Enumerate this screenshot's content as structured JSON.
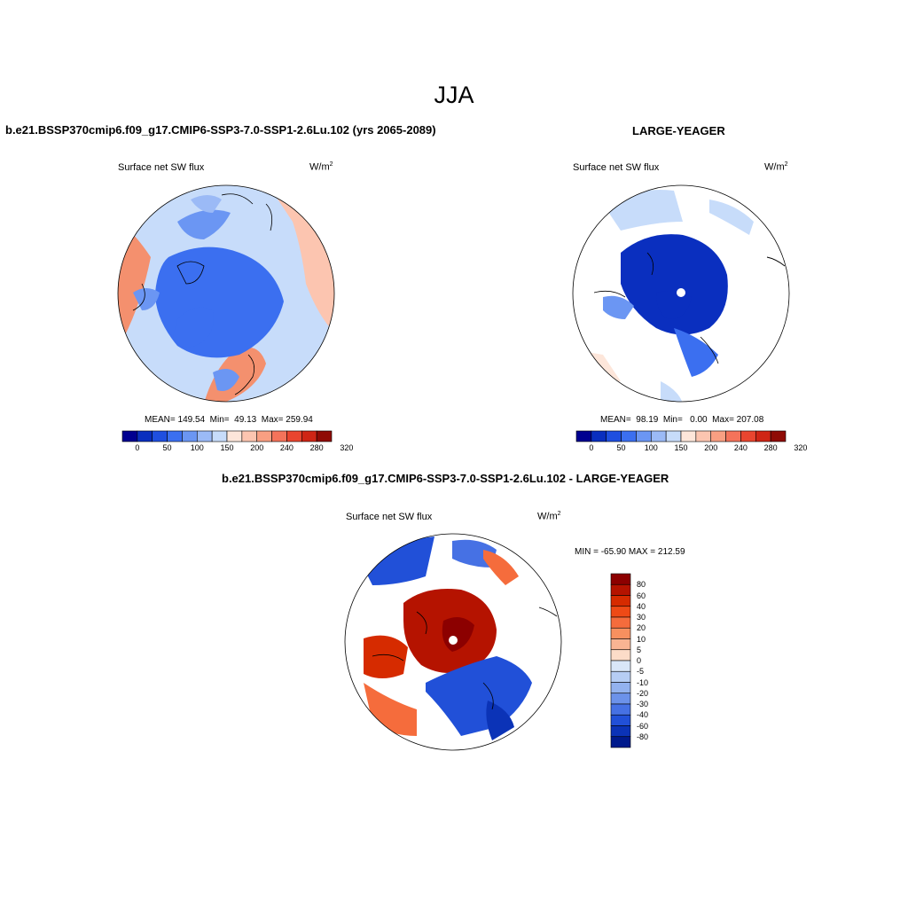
{
  "title": "JJA",
  "panels": {
    "left": {
      "title": "b.e21.BSSP370cmip6.f09_g17.CMIP6-SSP3-7.0-SSP1-2.6Lu.102 (yrs 2065-2089)",
      "field": "Surface net SW flux",
      "units_base": "W/m",
      "units_exp": "2",
      "stats": "MEAN= 149.54  Min=  49.13  Max= 259.94"
    },
    "right": {
      "title": "LARGE-YEAGER",
      "field": "Surface net SW flux",
      "units_base": "W/m",
      "units_exp": "2",
      "stats": "MEAN=  98.19  Min=   0.00  Max= 207.08"
    },
    "diff": {
      "title": "b.e21.BSSP370cmip6.f09_g17.CMIP6-SSP3-7.0-SSP1-2.6Lu.102 - LARGE-YEAGER",
      "field": "Surface net SW flux",
      "units_base": "W/m",
      "units_exp": "2",
      "minmax": "MIN = -65.90 MAX = 212.59"
    }
  },
  "colorbars": {
    "abs_labels": [
      "0",
      "50",
      "100",
      "150",
      "200",
      "240",
      "280",
      "320"
    ],
    "abs_colors": [
      "#000090",
      "#0a2fbf",
      "#1f4fe0",
      "#3b6ff0",
      "#6b96f3",
      "#9bbaf6",
      "#c7dcfa",
      "#fde6da",
      "#fcc5b0",
      "#f99f82",
      "#f4735a",
      "#e9452f",
      "#cf2515",
      "#8f0b05"
    ],
    "diff_labels": [
      "80",
      "60",
      "40",
      "30",
      "20",
      "10",
      "5",
      "0",
      "-5",
      "-10",
      "-20",
      "-30",
      "-40",
      "-60",
      "-80"
    ],
    "diff_colors": [
      "#8c0000",
      "#b51300",
      "#d62b00",
      "#ee4a16",
      "#f56c3c",
      "#f7905f",
      "#f9b493",
      "#fcdcc8",
      "#d9e6f8",
      "#b6cdf4",
      "#93b2ef",
      "#6c92ea",
      "#4671e4",
      "#2150d8",
      "#0b33b7",
      "#001a8c"
    ]
  }
}
